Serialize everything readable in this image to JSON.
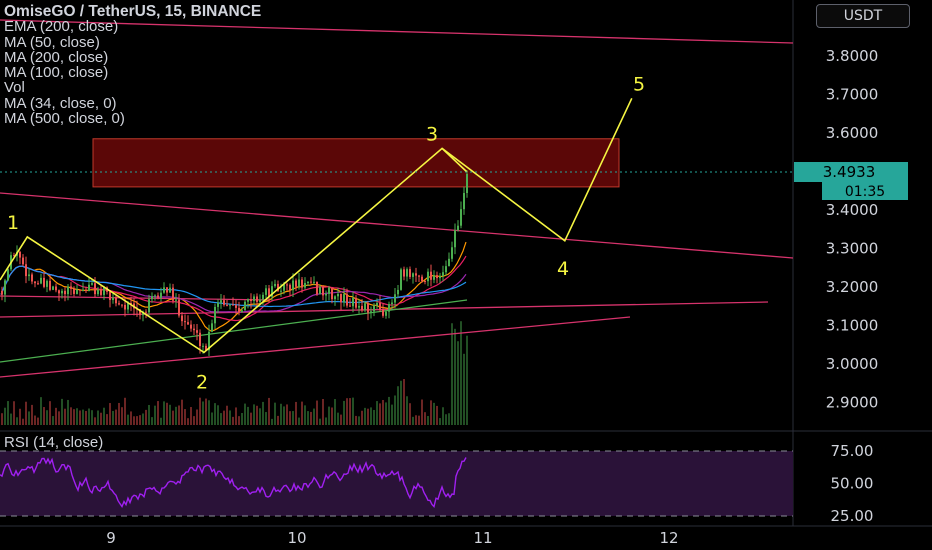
{
  "header": {
    "title": "OmiseGO / TetherUS, 15, BINANCE",
    "indicators": [
      "EMA (200, close)",
      "MA (50, close)",
      "MA (200, close)",
      "MA (100, close)",
      "Vol",
      "MA (34, close, 0)",
      "MA (500, close, 0)"
    ],
    "currency": "USDT"
  },
  "rsi_panel": {
    "label": "RSI (14, close)"
  },
  "price_badge": {
    "price": "3.4933",
    "countdown": "01:35"
  },
  "colors": {
    "background": "#000000",
    "wave": "#f5f542",
    "trendline": "#d6336c",
    "zone_fill": "#7a0a0a",
    "zone_border": "#c0392b",
    "up_candle": "#4caf50",
    "down_candle": "#ef5350",
    "price_badge": "#26a69a",
    "rsi_line": "#a020f0"
  },
  "chart_data": {
    "type": "candlestick",
    "symbol": "OMGUSDT",
    "interval": "15",
    "y_axis": {
      "ticks": [
        "3.8000",
        "3.7000",
        "3.6000",
        "3.4000",
        "3.3000",
        "3.2000",
        "3.1000",
        "3.0000",
        "2.9000"
      ],
      "range": [
        2.82,
        3.87
      ]
    },
    "x_axis": {
      "ticks": [
        "9",
        "10",
        "11",
        "12"
      ]
    },
    "rsi_axis": {
      "ticks": [
        "75.00",
        "50.00",
        "25.00"
      ],
      "range": [
        15,
        90
      ]
    },
    "last_price": 3.4933,
    "wave_labels": [
      "1",
      "2",
      "3",
      "4",
      "5"
    ],
    "wave_points": [
      {
        "label": "1",
        "day": 8.55,
        "price": 3.33
      },
      {
        "label": "2",
        "day": 9.5,
        "price": 3.03
      },
      {
        "label": "3",
        "day": 10.78,
        "price": 3.56
      },
      {
        "label": "4",
        "day": 11.44,
        "price": 3.32
      },
      {
        "label": "5",
        "day": 11.8,
        "price": 3.69
      }
    ],
    "resistance_zone": {
      "day_from": 8.95,
      "day_to": 11.75,
      "price_low": 3.46,
      "price_high": 3.585
    }
  }
}
